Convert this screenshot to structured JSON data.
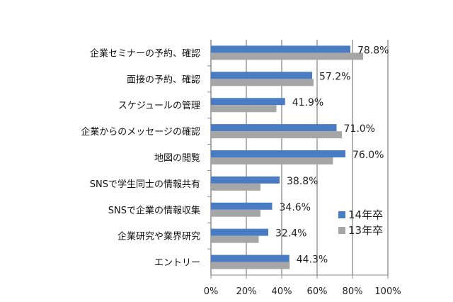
{
  "chart_data": {
    "type": "bar",
    "orientation": "horizontal",
    "categories": [
      "企業セミナーの予約、確認",
      "面接の予約、確認",
      "スケジュールの管理",
      "企業からのメッセージの確認",
      "地図の閲覧",
      "SNSで学生同士の情報共有",
      "SNSで企業の情報収集",
      "企業研究や業界研究",
      "エントリー"
    ],
    "series": [
      {
        "name": "14年卒",
        "color": "#4a7cc4",
        "values": [
          78.8,
          57.2,
          41.9,
          71.0,
          76.0,
          38.8,
          34.6,
          32.4,
          44.3
        ],
        "labels": [
          "78.8%",
          "57.2%",
          "41.9%",
          "71.0%",
          "76.0%",
          "38.8%",
          "34.6%",
          "32.4%",
          "44.3%"
        ]
      },
      {
        "name": "13年卒",
        "color": "#a6a6a6",
        "values": [
          86,
          58,
          37,
          74,
          69,
          28,
          28,
          27,
          44.5
        ]
      }
    ],
    "xlim": [
      0,
      100
    ],
    "xticks": [
      "0%",
      "20%",
      "40%",
      "60%",
      "80%",
      "100%"
    ],
    "grid": true,
    "legend": "right"
  }
}
